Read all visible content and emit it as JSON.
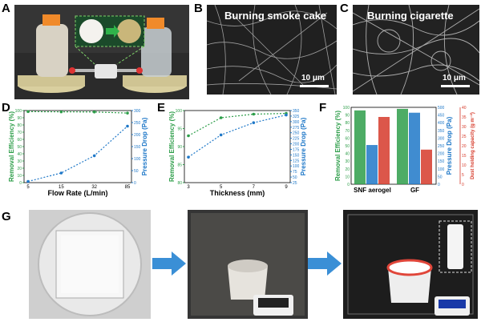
{
  "panels": {
    "A": {
      "label": "A"
    },
    "B": {
      "label": "B",
      "title": "Burning smoke cake",
      "scale": "10 μm"
    },
    "C": {
      "label": "C",
      "title": "Burning cigarette",
      "scale": "10 μm"
    },
    "D": {
      "label": "D"
    },
    "E": {
      "label": "E"
    },
    "F": {
      "label": "F"
    },
    "G": {
      "label": "G"
    }
  },
  "colors": {
    "green": "#2e9e4a",
    "blue": "#1f78c8",
    "red": "#d63a2a"
  },
  "chart_data": [
    {
      "type": "line",
      "panel": "D",
      "xlabel": "Flow Rate (L/min)",
      "ylabel_left": "Removal Efficiency (%)",
      "ylabel_right": "Pressure Drop (Pa)",
      "x": [
        5,
        15,
        32,
        85
      ],
      "x_ticks": [
        "5",
        "15",
        "32",
        "85"
      ],
      "y_left_ticks": [
        "0",
        "10",
        "20",
        "30",
        "40",
        "50",
        "60",
        "70",
        "80",
        "90",
        "100"
      ],
      "y_right_ticks": [
        "0",
        "50",
        "100",
        "150",
        "200",
        "250",
        "300"
      ],
      "ylim_left": [
        0,
        100
      ],
      "ylim_right": [
        0,
        300
      ],
      "series": [
        {
          "axis": "left",
          "color": "green",
          "values": [
            98.5,
            98.2,
            98.0,
            96.5
          ]
        },
        {
          "axis": "right",
          "color": "blue",
          "values": [
            5,
            40,
            112,
            235
          ]
        }
      ]
    },
    {
      "type": "line",
      "panel": "E",
      "xlabel": "Thickness (mm)",
      "ylabel_left": "Removal Efficiency (%)",
      "ylabel_right": "Pressure Drop (Pa)",
      "x": [
        3,
        5,
        7,
        9
      ],
      "x_ticks": [
        "3",
        "5",
        "7",
        "9"
      ],
      "y_left_ticks": [
        "80",
        "85",
        "90",
        "95",
        "100"
      ],
      "y_right_ticks": [
        "25",
        "50",
        "75",
        "100",
        "125",
        "150",
        "175",
        "200",
        "225",
        "250",
        "275",
        "300",
        "325",
        "350"
      ],
      "ylim_left": [
        80,
        100
      ],
      "ylim_right": [
        25,
        350
      ],
      "series": [
        {
          "axis": "left",
          "color": "green",
          "values": [
            93,
            98,
            99,
            99.2
          ]
        },
        {
          "axis": "right",
          "color": "blue",
          "values": [
            140,
            240,
            295,
            330
          ]
        }
      ]
    },
    {
      "type": "bar",
      "panel": "F",
      "categories": [
        "SNF aerogel",
        "GF"
      ],
      "ylabel_left": "Removal Efficiency (%)",
      "ylabel_mid": "Pressure Drop (Pa)",
      "ylabel_right": "Dust holding capacity (g m⁻²)",
      "y_left_ticks": [
        "0",
        "10",
        "20",
        "30",
        "40",
        "50",
        "60",
        "70",
        "80",
        "90",
        "100"
      ],
      "y_mid_ticks": [
        "0",
        "50",
        "100",
        "150",
        "200",
        "250",
        "300",
        "350",
        "400",
        "450",
        "500"
      ],
      "y_right_ticks": [
        "0",
        "5",
        "10",
        "15",
        "20",
        "25",
        "30",
        "35",
        "40"
      ],
      "ylim_left": [
        0,
        100
      ],
      "ylim_mid": [
        0,
        500
      ],
      "ylim_right": [
        0,
        40
      ],
      "series": [
        {
          "name": "",
          "axis": "left",
          "color": "green",
          "values": [
            96,
            98
          ]
        },
        {
          "name": "",
          "axis": "mid",
          "color": "blue",
          "values": [
            255,
            465
          ]
        },
        {
          "name": "",
          "axis": "right",
          "color": "red",
          "values": [
            35,
            18
          ]
        }
      ]
    }
  ]
}
